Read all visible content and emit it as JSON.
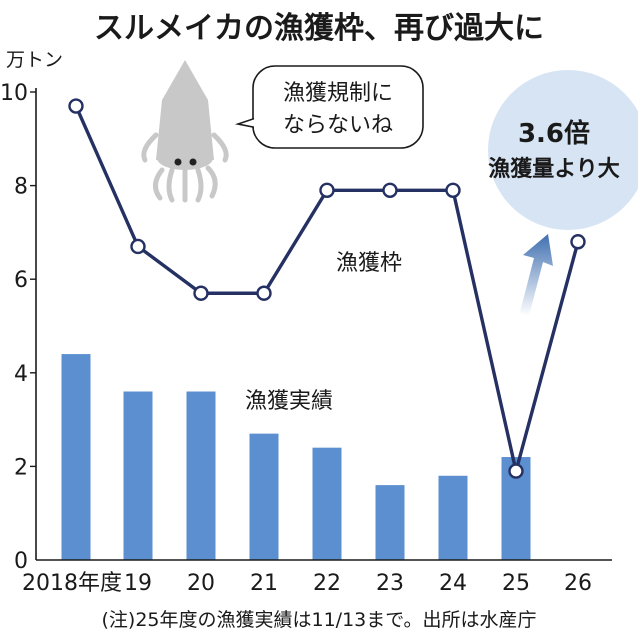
{
  "title": "スルメイカの漁獲枠、再び過大に",
  "footnote": "(注)25年度の漁獲実績は11/13まで。出所は水産庁",
  "speech_bubble": {
    "line1": "漁獲規制に",
    "line2": "ならないね"
  },
  "callout": {
    "value": "3.6倍",
    "text": "漁獲量より大"
  },
  "colors": {
    "bar": "#5b8fcf",
    "line": "#253063",
    "circle": "#d6e4f3"
  },
  "chart_data": {
    "type": "bar",
    "y_unit": "万トン",
    "ylim": [
      0,
      10
    ],
    "yticks": [
      "0",
      "2",
      "4",
      "6",
      "8",
      "10"
    ],
    "categories": [
      "2018年度",
      "19",
      "20",
      "21",
      "22",
      "23",
      "24",
      "25",
      "26"
    ],
    "series": [
      {
        "name": "漁獲実績",
        "type": "bar",
        "values": [
          4.4,
          3.6,
          3.6,
          2.7,
          2.4,
          1.6,
          1.8,
          2.2,
          null
        ]
      },
      {
        "name": "漁獲枠",
        "type": "line",
        "values": [
          9.7,
          6.7,
          5.7,
          5.7,
          7.9,
          7.9,
          7.9,
          1.9,
          6.8
        ]
      }
    ]
  }
}
